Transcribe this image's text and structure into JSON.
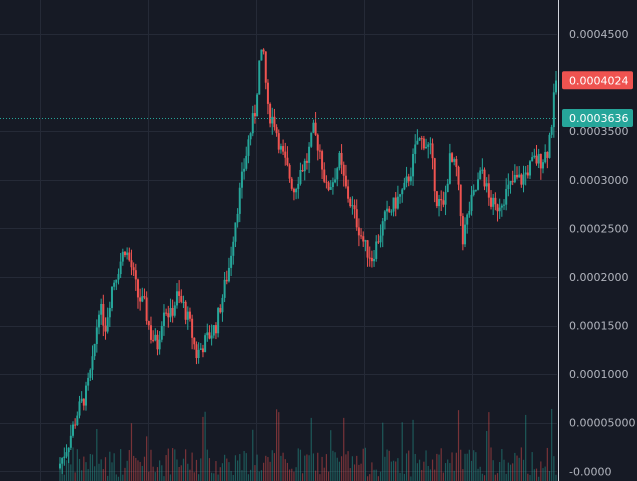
{
  "chart_data": {
    "type": "candlestick",
    "title": "",
    "colors": {
      "background": "#161a25",
      "grid": "#252a37",
      "up": "#26a69a",
      "down": "#ef5350",
      "axis_text": "#b2b5be",
      "last_price_badge": "#ef5350",
      "dotted_line_badge": "#26a69a"
    },
    "ylim": [
      -1e-05,
      0.000485
    ],
    "y_ticks": [
      {
        "value": 0.00045,
        "label": "0.0004500"
      },
      {
        "value": 0.00035,
        "label": "0.0003500"
      },
      {
        "value": 0.0003,
        "label": "0.0003000"
      },
      {
        "value": 0.00025,
        "label": "0.0002500"
      },
      {
        "value": 0.0002,
        "label": "0.0002000"
      },
      {
        "value": 0.00015,
        "label": "0.0001500"
      },
      {
        "value": 0.0001,
        "label": "0.0001000"
      },
      {
        "value": 5e-05,
        "label": "0.00005000"
      },
      {
        "value": 0.0,
        "label": "-0.0000"
      }
    ],
    "price_badges": [
      {
        "value": 0.0004024,
        "label": "0.0004024",
        "color": "#ef5350",
        "dotted_line": false
      },
      {
        "value": 0.0003636,
        "label": "0.0003636",
        "color": "#26a69a",
        "dotted_line": true
      }
    ],
    "close_path": [
      [
        0,
        8e-06
      ],
      [
        4,
        3e-05
      ],
      [
        8,
        6e-05
      ],
      [
        12,
        8e-05
      ],
      [
        15,
        0.00011
      ],
      [
        18,
        0.00017
      ],
      [
        21,
        0.00015
      ],
      [
        24,
        0.00019
      ],
      [
        27,
        0.00021
      ],
      [
        30,
        0.00023
      ],
      [
        33,
        0.00021
      ],
      [
        36,
        0.00018
      ],
      [
        39,
        0.00017
      ],
      [
        42,
        0.00014
      ],
      [
        45,
        0.00013
      ],
      [
        48,
        0.00017
      ],
      [
        51,
        0.00016
      ],
      [
        54,
        0.00018
      ],
      [
        57,
        0.00017
      ],
      [
        60,
        0.00015
      ],
      [
        63,
        0.00012
      ],
      [
        66,
        0.00013
      ],
      [
        69,
        0.00014
      ],
      [
        72,
        0.00015
      ],
      [
        75,
        0.00018
      ],
      [
        78,
        0.00021
      ],
      [
        81,
        0.00026
      ],
      [
        84,
        0.0003
      ],
      [
        87,
        0.00034
      ],
      [
        90,
        0.00037
      ],
      [
        92,
        0.00042
      ],
      [
        94,
        0.00043
      ],
      [
        96,
        0.00037
      ],
      [
        99,
        0.00036
      ],
      [
        102,
        0.00033
      ],
      [
        105,
        0.00031
      ],
      [
        108,
        0.00029
      ],
      [
        111,
        0.00031
      ],
      [
        114,
        0.00032
      ],
      [
        117,
        0.00035
      ],
      [
        120,
        0.00033
      ],
      [
        123,
        0.00029
      ],
      [
        126,
        0.0003
      ],
      [
        129,
        0.00032
      ],
      [
        132,
        0.00029
      ],
      [
        135,
        0.00027
      ],
      [
        138,
        0.00025
      ],
      [
        141,
        0.00023
      ],
      [
        144,
        0.00022
      ],
      [
        147,
        0.00024
      ],
      [
        150,
        0.00026
      ],
      [
        153,
        0.00027
      ],
      [
        156,
        0.00028
      ],
      [
        159,
        0.00029
      ],
      [
        162,
        0.00031
      ],
      [
        165,
        0.00034
      ],
      [
        168,
        0.00034
      ],
      [
        171,
        0.00033
      ],
      [
        174,
        0.00028
      ],
      [
        177,
        0.00027
      ],
      [
        180,
        0.00032
      ],
      [
        183,
        0.00031
      ],
      [
        186,
        0.00024
      ],
      [
        189,
        0.00027
      ],
      [
        192,
        0.00029
      ],
      [
        195,
        0.00031
      ],
      [
        198,
        0.00028
      ],
      [
        201,
        0.00027
      ],
      [
        204,
        0.00028
      ],
      [
        207,
        0.00029
      ],
      [
        210,
        0.0003
      ],
      [
        213,
        0.0003
      ],
      [
        216,
        0.00031
      ],
      [
        219,
        0.00032
      ],
      [
        222,
        0.00032
      ],
      [
        225,
        0.00033
      ],
      [
        227,
        0.00036
      ],
      [
        229,
        0.0004024
      ]
    ],
    "candle_count": 230
  }
}
